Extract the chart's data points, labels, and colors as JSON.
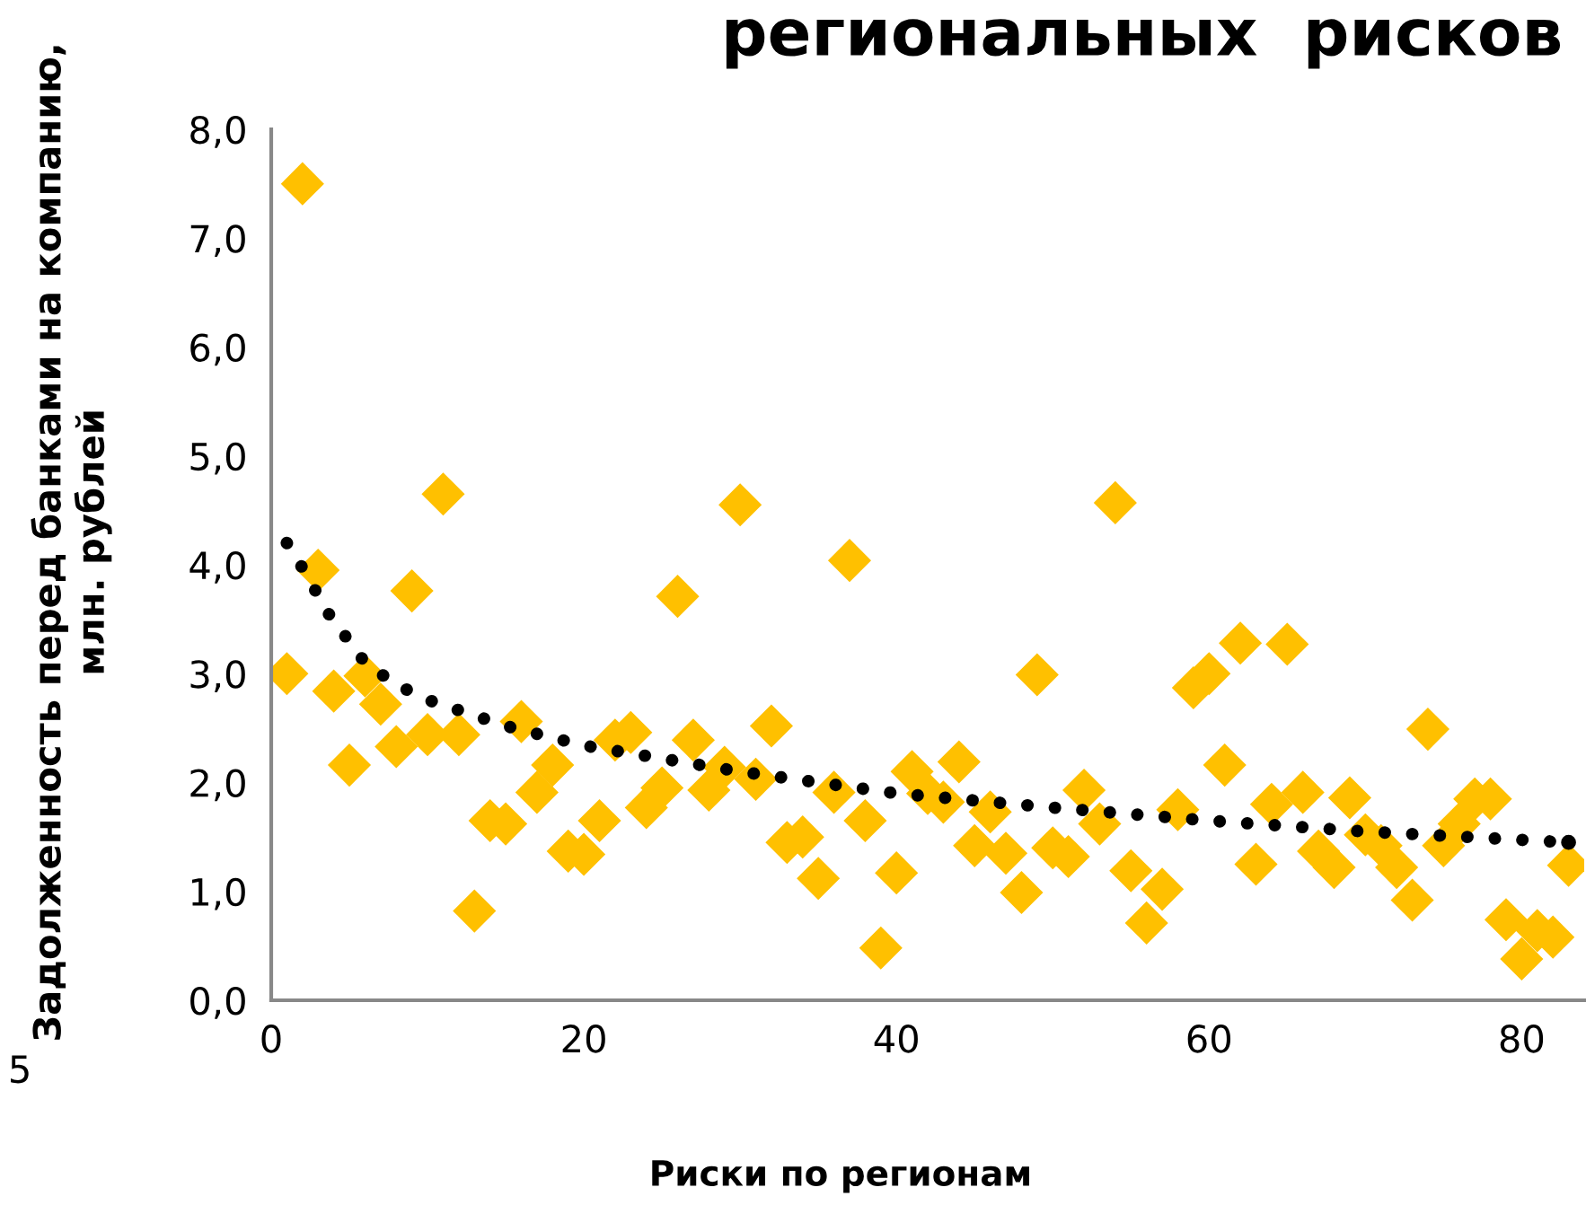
{
  "chart_data": {
    "type": "scatter",
    "title": "региональных  рисков",
    "xlabel": "Риски по регионам",
    "ylabel": "Задолженность перед банками на компанию,\nмлн. рублей",
    "annotations": [
      "5"
    ],
    "xlim": [
      0,
      84
    ],
    "xticks": [
      0,
      20,
      40,
      60,
      80
    ],
    "ylim": [
      0,
      8
    ],
    "yticks": [
      {
        "value": 0,
        "label": "0,0"
      },
      {
        "value": 1,
        "label": "1,0"
      },
      {
        "value": 2,
        "label": "2,0"
      },
      {
        "value": 3,
        "label": "3,0"
      },
      {
        "value": 4,
        "label": "4,0"
      },
      {
        "value": 5,
        "label": "5,0"
      },
      {
        "value": 6,
        "label": "6,0"
      },
      {
        "value": 7,
        "label": "7,0"
      },
      {
        "value": 8,
        "label": "8,0"
      }
    ],
    "grid": false,
    "series": [
      {
        "color": "#ffc000",
        "marker": "diamond",
        "x": [
          1,
          2,
          3,
          4,
          5,
          6,
          7,
          8,
          9,
          10,
          11,
          12,
          13,
          14,
          15,
          16,
          17,
          18,
          19,
          20,
          21,
          22,
          23,
          24,
          25,
          26,
          27,
          28,
          29,
          30,
          31,
          32,
          33,
          34,
          35,
          36,
          37,
          38,
          39,
          40,
          41,
          42,
          43,
          44,
          45,
          46,
          47,
          48,
          49,
          50,
          51,
          52,
          53,
          54,
          55,
          56,
          57,
          58,
          59,
          60,
          61,
          62,
          63,
          64,
          65,
          66,
          67,
          68,
          69,
          70,
          71,
          72,
          73,
          74,
          75,
          76,
          77,
          78,
          79,
          80,
          81,
          82,
          83
        ],
        "values": [
          3.0,
          7.5,
          3.95,
          2.84,
          2.16,
          2.98,
          2.72,
          2.33,
          3.76,
          2.44,
          4.65,
          2.44,
          0.82,
          1.65,
          1.62,
          2.56,
          1.91,
          2.16,
          1.37,
          1.34,
          1.65,
          2.39,
          2.46,
          1.77,
          1.95,
          3.71,
          2.39,
          1.93,
          2.14,
          4.55,
          2.03,
          2.52,
          1.45,
          1.5,
          1.12,
          1.91,
          4.04,
          1.65,
          0.48,
          1.17,
          2.1,
          1.9,
          1.82,
          2.19,
          1.42,
          1.73,
          1.35,
          0.99,
          2.99,
          1.4,
          1.32,
          1.93,
          1.62,
          4.57,
          1.19,
          0.71,
          1.02,
          1.75,
          2.87,
          3.0,
          2.16,
          3.28,
          1.25,
          1.8,
          3.27,
          1.91,
          1.37,
          1.22,
          1.86,
          1.52,
          1.42,
          1.22,
          0.92,
          2.49,
          1.42,
          1.62,
          1.85,
          1.85,
          0.74,
          0.38,
          0.64,
          0.58,
          1.24
        ]
      },
      {
        "type": "line",
        "color": "#000000",
        "marker": "none",
        "line_style": "dotted",
        "x": [
          1,
          2,
          3,
          4,
          5,
          6,
          8,
          10,
          15,
          20,
          30,
          40,
          50,
          60,
          70,
          83
        ],
        "values": [
          4.2,
          3.97,
          3.72,
          3.47,
          3.3,
          3.1,
          2.9,
          2.76,
          2.52,
          2.34,
          2.1,
          1.9,
          1.77,
          1.65,
          1.55,
          1.45
        ]
      }
    ]
  }
}
